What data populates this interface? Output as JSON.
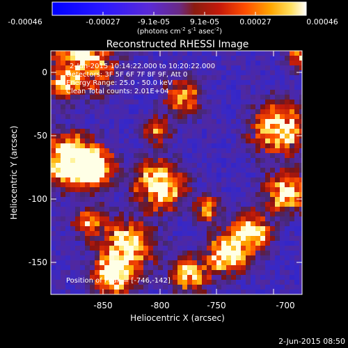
{
  "colorbar": {
    "ticks": [
      "-0.00046",
      "-0.00027",
      "-9.1e-05",
      "9.1e-05",
      "0.00027",
      "0.00046"
    ],
    "unit_main": "(photons cm",
    "unit_exp1": "-2",
    "unit_mid": " s",
    "unit_exp2": "-1",
    "unit_mid2": " asec",
    "unit_exp3": "-2",
    "unit_end": ")"
  },
  "title": "Reconstructed RHESSI Image",
  "info": {
    "line1": "2-Jun-2015 10:14:22.000 to 10:20:22.000",
    "line2": "Detectors: 3F 5F 6F 7F 8F 9F, Att 0",
    "line3": "Energy Range: 25.0 - 50.0 keV",
    "line4": "Clean    Total counts: 2.01E+04",
    "position": "Position of Peak = [-746,-142]"
  },
  "axes": {
    "xlabel": "Heliocentric X (arcsec)",
    "ylabel": "Heliocentric Y (arcsec)",
    "xticks": [
      "-850",
      "-800",
      "-750",
      "-700"
    ],
    "yticks": [
      "0",
      "-50",
      "-100",
      "-150"
    ]
  },
  "footer": {
    "timestamp": "2-Jun-2015 08:50"
  }
}
